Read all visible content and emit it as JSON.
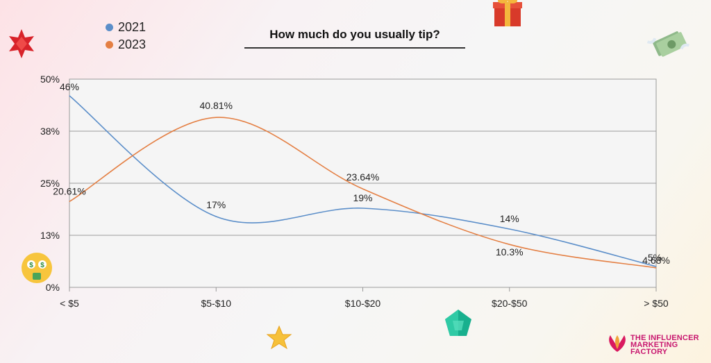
{
  "chart_data": {
    "type": "line",
    "title": "How much do you usually tip?",
    "categories": [
      "< $5",
      "$5-$10",
      "$10-$20",
      "$20-$50",
      "> $50"
    ],
    "y_ticks": [
      "0%",
      "13%",
      "25%",
      "38%",
      "50%"
    ],
    "ylim": [
      0,
      50
    ],
    "grid": true,
    "legend_position": "top-left",
    "series": [
      {
        "name": "2021",
        "color": "#5b8ec9",
        "values": [
          46,
          17,
          19,
          14,
          5
        ],
        "labels": [
          "46%",
          "17%",
          "19%",
          "14%",
          "5%"
        ]
      },
      {
        "name": "2023",
        "color": "#e47f43",
        "values": [
          20.61,
          40.81,
          23.64,
          10.3,
          4.68
        ],
        "labels": [
          "20.61%",
          "40.81%",
          "23.64%",
          "10.3%",
          "4.68%"
        ]
      }
    ]
  },
  "brand": {
    "line1": "THE INFLUENCER",
    "line2": "MARKETING",
    "line3": "FACTORY"
  },
  "decorations": [
    "star-icon",
    "gift-icon",
    "money-icon",
    "gem-icon",
    "money-face-icon",
    "star-emoji-icon",
    "green-gem-icon"
  ]
}
